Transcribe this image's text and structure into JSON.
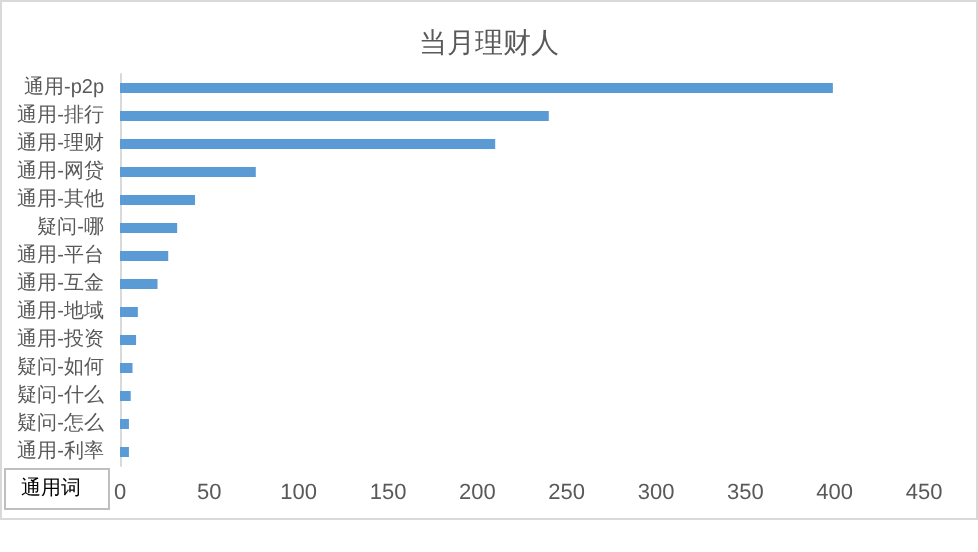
{
  "chart_data": {
    "type": "bar",
    "orientation": "horizontal",
    "title": "当月理财人",
    "categories": [
      "通用-p2p",
      "通用-排行",
      "通用-理财",
      "通用-网贷",
      "通用-其他",
      "疑问-哪",
      "通用-平台",
      "通用-互金",
      "通用-地域",
      "通用-投资",
      "疑问-如何",
      "疑问-什么",
      "疑问-怎么",
      "通用-利率"
    ],
    "values": [
      399,
      240,
      210,
      76,
      42,
      32,
      27,
      21,
      10,
      9,
      7,
      6,
      5,
      5
    ],
    "color": "#5b9bd5",
    "xlim": [
      0,
      450
    ],
    "xticks": [
      0,
      50,
      100,
      150,
      200,
      250,
      300,
      350,
      400,
      450
    ],
    "annotations": [
      "通用词"
    ]
  }
}
